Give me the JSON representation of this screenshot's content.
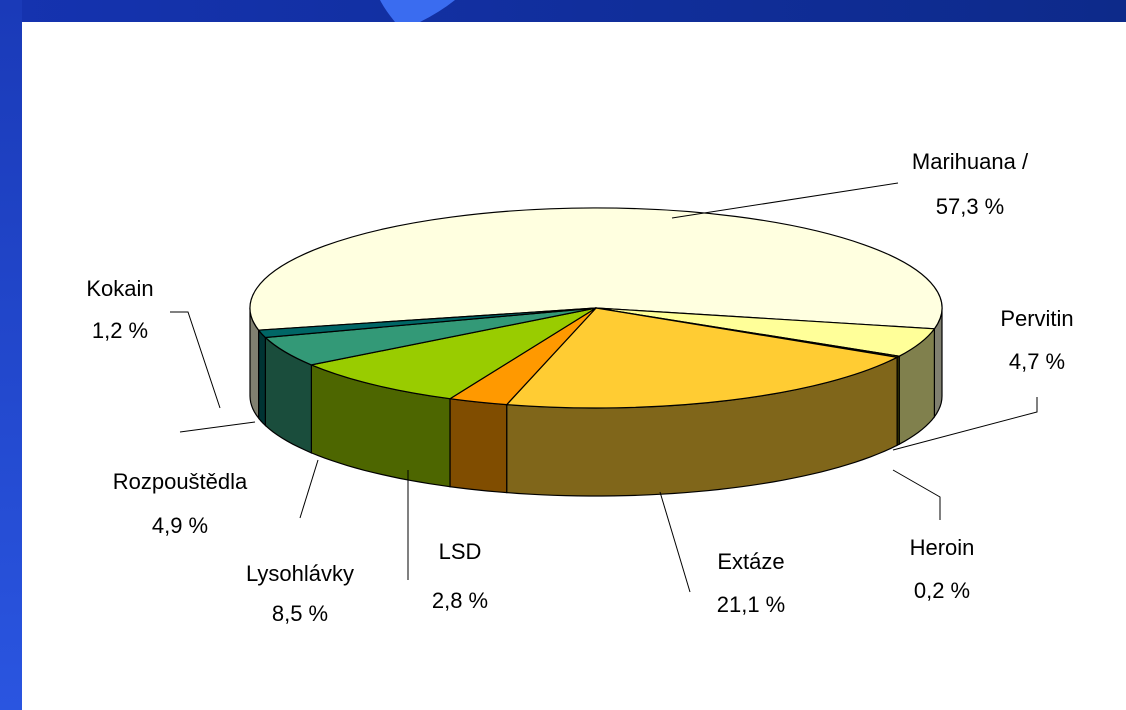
{
  "chart_data": {
    "type": "pie",
    "categories": [
      "Marihuana /",
      "Pervitin",
      "Heroin",
      "Extáze",
      "LSD",
      "Lysohlávky",
      "Rozpouštědla",
      "Kokain"
    ],
    "values": [
      57.3,
      4.7,
      0.2,
      21.1,
      2.8,
      8.5,
      4.9,
      1.2
    ],
    "value_labels": [
      "57,3 %",
      "4,7 %",
      "0,2 %",
      "21,1 %",
      "2,8 %",
      "8,5 %",
      "4,9 %",
      "1,2 %"
    ],
    "colors": [
      "#ffffe0",
      "#ffff99",
      "#8a8a00",
      "#ffcc33",
      "#ff9900",
      "#99cc00",
      "#339977",
      "#006666"
    ],
    "style": "3d"
  }
}
